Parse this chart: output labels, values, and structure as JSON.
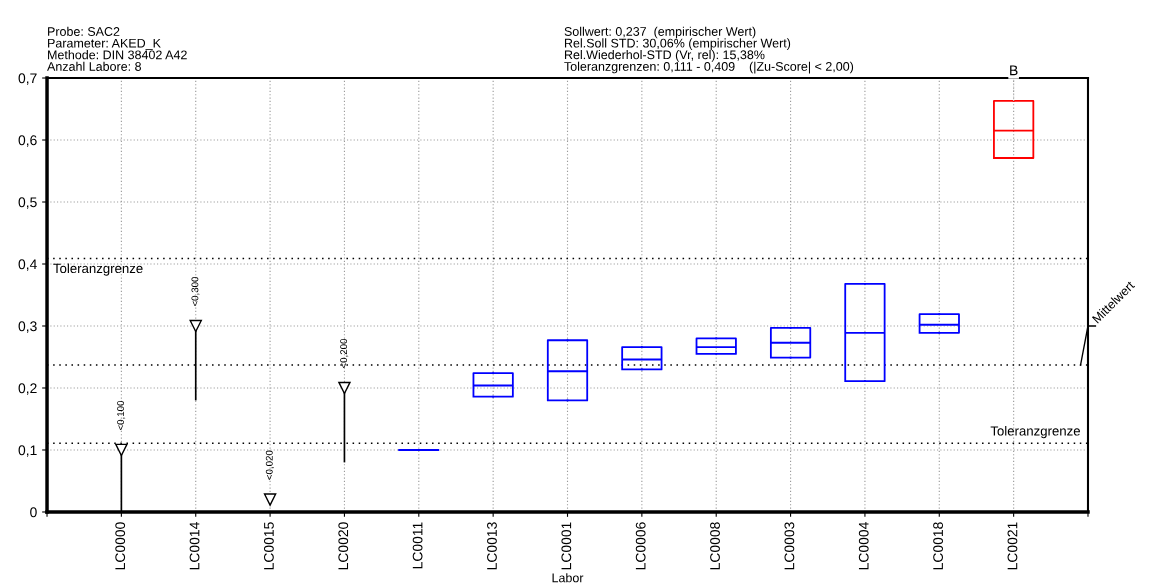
{
  "chart_data": {
    "type": "box",
    "title": "Probe: SAC2\nParameter: AKED_K\nMethode: DIN 38402 A42\nAnzahl Labore: 8",
    "subtitle": "Sollwert: 0,237  (empirischer Wert)\nRel.Soll STD: 30,06% (empirischer Wert)\nRel.Wiederhol-STD (Vr, rel): 15,38%\nToleranzgrenzen: 0,111 - 0,409    (|Zu-Score| < 2,00)",
    "xlabel": "Labor",
    "categories": [
      null,
      "LC0000",
      "LC0014",
      "LC0015",
      "LC0020",
      "LC0011",
      "LC0013",
      "LC0001",
      "LC0006",
      "LC0008",
      "LC0003",
      "LC0004",
      "LC0018",
      "LC0021",
      null
    ],
    "series": [
      {
        "color": "#0000ff",
        "boxes": [
          null,
          null,
          null,
          null,
          null,
          {
            "low": 0.1,
            "q1": 0.1,
            "median": 0.1,
            "q3": 0.1,
            "high": 0.1
          },
          {
            "low": 0.186,
            "q1": 0.186,
            "median": 0.204,
            "q3": 0.224,
            "high": 0.224
          },
          {
            "low": 0.18,
            "q1": 0.18,
            "median": 0.227,
            "q3": 0.277,
            "high": 0.277
          },
          {
            "low": 0.23,
            "q1": 0.23,
            "median": 0.246,
            "q3": 0.266,
            "high": 0.266
          },
          {
            "low": 0.255,
            "q1": 0.255,
            "median": 0.266,
            "q3": 0.28,
            "high": 0.28
          },
          {
            "low": 0.249,
            "q1": 0.249,
            "median": 0.273,
            "q3": 0.297,
            "high": 0.297
          },
          {
            "low": 0.211,
            "q1": 0.211,
            "median": 0.289,
            "q3": 0.368,
            "high": 0.368
          },
          {
            "low": 0.289,
            "q1": 0.289,
            "median": 0.302,
            "q3": 0.319,
            "high": 0.319
          },
          null,
          null
        ]
      },
      {
        "color": "#ff0000",
        "boxes": [
          null,
          null,
          null,
          null,
          null,
          null,
          null,
          null,
          null,
          null,
          null,
          null,
          null,
          {
            "low": 0.571,
            "q1": 0.571,
            "median": 0.615,
            "q3": 0.663,
            "high": 0.663
          },
          null
        ]
      },
      {
        "type": "scatter",
        "marker": "triangle",
        "color": "#000000",
        "values": [
          null,
          0.1,
          0.3,
          0.02,
          0.2,
          null,
          null,
          null,
          null,
          null,
          null,
          null,
          null,
          null,
          null
        ],
        "errors": [
          null,
          [
            0,
            0.1
          ],
          [
            0.18,
            0.3
          ],
          null,
          [
            0.08,
            0.2
          ],
          null,
          null,
          null,
          null,
          null,
          null,
          null,
          null,
          null,
          null
        ],
        "value_labels": [
          null,
          "<0,100",
          "<0,300",
          "<0,020",
          "<0,200",
          null,
          null,
          null,
          null,
          null,
          null,
          null,
          null,
          null,
          null
        ]
      }
    ],
    "ylim": [
      0,
      0.7
    ],
    "yticks": [
      {
        "value": 0,
        "label": "0"
      },
      {
        "value": 0.1,
        "label": "0,1"
      },
      {
        "value": 0.2,
        "label": "0,2"
      },
      {
        "value": 0.3,
        "label": "0,3"
      },
      {
        "value": 0.4,
        "label": "0,4"
      },
      {
        "value": 0.5,
        "label": "0,5"
      },
      {
        "value": 0.6,
        "label": "0,6"
      },
      {
        "value": 0.7,
        "label": "0,7"
      }
    ],
    "ref_lines": [
      {
        "axis": "y",
        "value": 0.409,
        "label": "Toleranzgrenze",
        "color": "#000000",
        "line_style": "dotted"
      },
      {
        "axis": "y",
        "value": 0.111,
        "label": "Toleranzgrenze",
        "color": "#000000",
        "line_style": "dotted"
      },
      {
        "axis": "y",
        "value": 0.237,
        "label": "Mittelwert",
        "color": "#000000",
        "line_style": "dotted"
      }
    ],
    "annotations": [
      {
        "text": "B",
        "x": "LC0021",
        "y": 0.663
      }
    ],
    "grid": true
  }
}
